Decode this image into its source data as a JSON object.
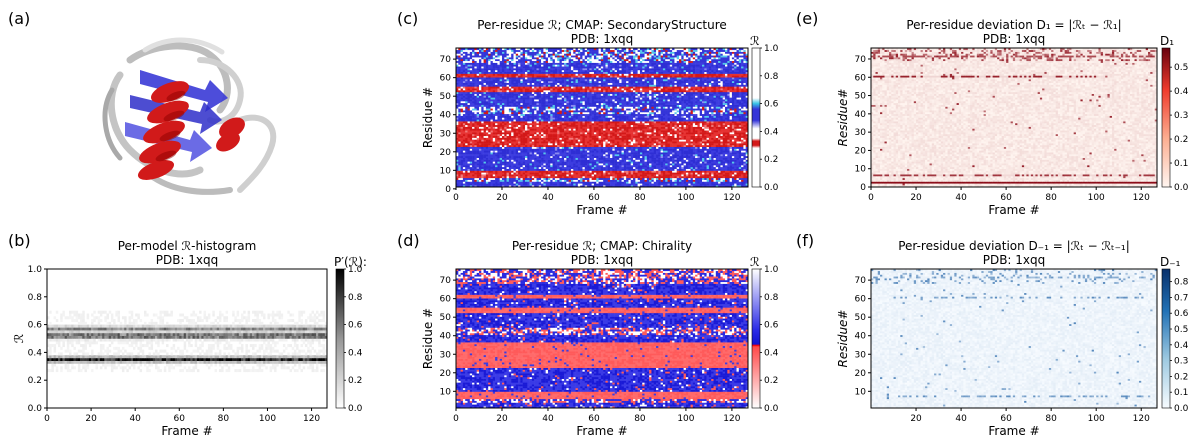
{
  "panel_labels": [
    "(a)",
    "(b)",
    "(c)",
    "(d)",
    "(e)",
    "(f)"
  ],
  "colors": {
    "helix_red": "#d11a1a",
    "strand_blue": "#3a3ad6",
    "coil_grey": "#b8b8b8",
    "pos_red": "#e3322f",
    "neg_blue": "#2c2ce0",
    "dev_red": "#a50f15",
    "dev_blue": "#08519c"
  },
  "chart_data": [
    {
      "id": "b",
      "type": "heatmap",
      "title": "Per-model ℛ-histogram",
      "subtitle": "PDB: 1xqq",
      "xlabel": "Frame #",
      "ylabel": "ℛ",
      "xlim": [
        0,
        127
      ],
      "ylim": [
        0.0,
        1.0
      ],
      "xticks": [
        "0",
        "20",
        "40",
        "60",
        "80",
        "100",
        "120"
      ],
      "yticks": [
        "0.0",
        "0.2",
        "0.4",
        "0.6",
        "0.8",
        "1.0"
      ],
      "colorbar_label": "P′(ℛ):",
      "colorbar_ticks": [
        "0.0",
        "0.2",
        "0.4",
        "0.6",
        "0.8",
        "1.0"
      ],
      "colormap": "Greys",
      "peaks": [
        {
          "center": 0.35,
          "relative_density": 1.0
        },
        {
          "center": 0.52,
          "relative_density": 0.8
        },
        {
          "center": 0.57,
          "relative_density": 0.5
        }
      ]
    },
    {
      "id": "c",
      "type": "heatmap",
      "title": "Per-residue ℛ; CMAP: SecondaryStructure",
      "subtitle": "PDB: 1xqq",
      "xlabel": "Frame #",
      "ylabel": "Residue #",
      "xlim": [
        0,
        127
      ],
      "ylim": [
        1,
        76
      ],
      "xticks": [
        "0",
        "20",
        "40",
        "60",
        "80",
        "100",
        "120"
      ],
      "yticks": [
        "0",
        "10",
        "20",
        "30",
        "40",
        "50",
        "60",
        "70"
      ],
      "colorbar_label": "ℛ",
      "colorbar_ticks": [
        "0.0",
        "0.2",
        "0.4",
        "0.6",
        "0.8",
        "1.0"
      ],
      "colormap": "SecondaryStructure",
      "bands": [
        {
          "residues": [
            1,
            3
          ],
          "class": "blue"
        },
        {
          "residues": [
            4,
            5
          ],
          "class": "mixed"
        },
        {
          "residues": [
            6,
            9
          ],
          "class": "red"
        },
        {
          "residues": [
            10,
            22
          ],
          "class": "blue"
        },
        {
          "residues": [
            23,
            36
          ],
          "class": "red"
        },
        {
          "residues": [
            37,
            40
          ],
          "class": "blue"
        },
        {
          "residues": [
            41,
            44
          ],
          "class": "mixed"
        },
        {
          "residues": [
            45,
            52
          ],
          "class": "blue"
        },
        {
          "residues": [
            53,
            55
          ],
          "class": "red"
        },
        {
          "residues": [
            56,
            60
          ],
          "class": "blue"
        },
        {
          "residues": [
            61,
            62
          ],
          "class": "red"
        },
        {
          "residues": [
            63,
            68
          ],
          "class": "blue"
        },
        {
          "residues": [
            69,
            76
          ],
          "class": "mixed"
        }
      ]
    },
    {
      "id": "d",
      "type": "heatmap",
      "title": "Per-residue ℛ; CMAP: Chirality",
      "subtitle": "PDB: 1xqq",
      "xlabel": "Frame #",
      "ylabel": "Residue #",
      "xlim": [
        0,
        127
      ],
      "ylim": [
        1,
        76
      ],
      "xticks": [
        "0",
        "20",
        "40",
        "60",
        "80",
        "100",
        "120"
      ],
      "yticks": [
        "10",
        "20",
        "30",
        "40",
        "50",
        "60",
        "70"
      ],
      "colorbar_label": "ℛ",
      "colorbar_ticks": [
        "0.0",
        "0.2",
        "0.4",
        "0.6",
        "0.8",
        "1.0"
      ],
      "colormap": "Chirality",
      "bands": [
        {
          "residues": [
            1,
            3
          ],
          "class": "blue"
        },
        {
          "residues": [
            4,
            5
          ],
          "class": "mixed"
        },
        {
          "residues": [
            6,
            9
          ],
          "class": "red"
        },
        {
          "residues": [
            10,
            22
          ],
          "class": "blue"
        },
        {
          "residues": [
            23,
            36
          ],
          "class": "red"
        },
        {
          "residues": [
            37,
            40
          ],
          "class": "blue"
        },
        {
          "residues": [
            41,
            44
          ],
          "class": "mixed"
        },
        {
          "residues": [
            45,
            52
          ],
          "class": "blue"
        },
        {
          "residues": [
            53,
            55
          ],
          "class": "red"
        },
        {
          "residues": [
            56,
            60
          ],
          "class": "blue"
        },
        {
          "residues": [
            61,
            62
          ],
          "class": "red"
        },
        {
          "residues": [
            63,
            68
          ],
          "class": "blue"
        },
        {
          "residues": [
            69,
            76
          ],
          "class": "mixed"
        }
      ]
    },
    {
      "id": "e",
      "type": "heatmap",
      "title": "Per-residue deviation D₁ = |ℛₜ − ℛ₁|",
      "subtitle": "PDB: 1xqq",
      "xlabel": "Frame #",
      "ylabel": "Residue#",
      "xlim": [
        0,
        127
      ],
      "ylim": [
        0,
        76
      ],
      "xticks": [
        "0",
        "20",
        "40",
        "60",
        "80",
        "100",
        "120"
      ],
      "yticks": [
        "0",
        "10",
        "20",
        "30",
        "40",
        "50",
        "60",
        "70"
      ],
      "colorbar_label": "D₁",
      "colorbar_ticks": [
        "0.0",
        "0.1",
        "0.2",
        "0.3",
        "0.4",
        "0.5"
      ],
      "colorbar_max": 0.58,
      "colormap": "Reds",
      "features": [
        {
          "residue": 2,
          "frames": [
            0,
            127
          ],
          "value": 0.55
        },
        {
          "residue": 6,
          "frames": [
            0,
            127
          ],
          "value": 0.45
        },
        {
          "residue": 60,
          "frames": [
            0,
            100
          ],
          "value": 0.5
        },
        {
          "residue": 71,
          "frames": [
            0,
            127
          ],
          "value": 0.4
        },
        {
          "residue": 44,
          "frames": [
            0,
            6
          ],
          "value": 0.35
        }
      ]
    },
    {
      "id": "f",
      "type": "heatmap",
      "title": "Per-residue deviation D₋₁ = |ℛₜ − ℛₜ₋₁|",
      "subtitle": "PDB: 1xqq",
      "xlabel": "Frame #",
      "ylabel": "Residue#",
      "xlim": [
        0,
        127
      ],
      "ylim": [
        1,
        76
      ],
      "xticks": [
        "20",
        "40",
        "60",
        "80",
        "100",
        "120"
      ],
      "yticks": [
        "10",
        "20",
        "30",
        "40",
        "50",
        "60",
        "70"
      ],
      "colorbar_label": "D₋₁",
      "colorbar_ticks": [
        "0.0",
        "0.1",
        "0.2",
        "0.3",
        "0.4",
        "0.5",
        "0.6",
        "0.7",
        "0.8"
      ],
      "colorbar_max": 0.88,
      "colormap": "Blues",
      "features": [
        {
          "residue": 6,
          "frames": [
            5,
            127
          ],
          "value": 0.6
        },
        {
          "residue": 60,
          "frames": [
            10,
            120
          ],
          "value": 0.6
        },
        {
          "residue": 71,
          "frames": [
            10,
            120
          ],
          "value": 0.5
        }
      ]
    }
  ]
}
